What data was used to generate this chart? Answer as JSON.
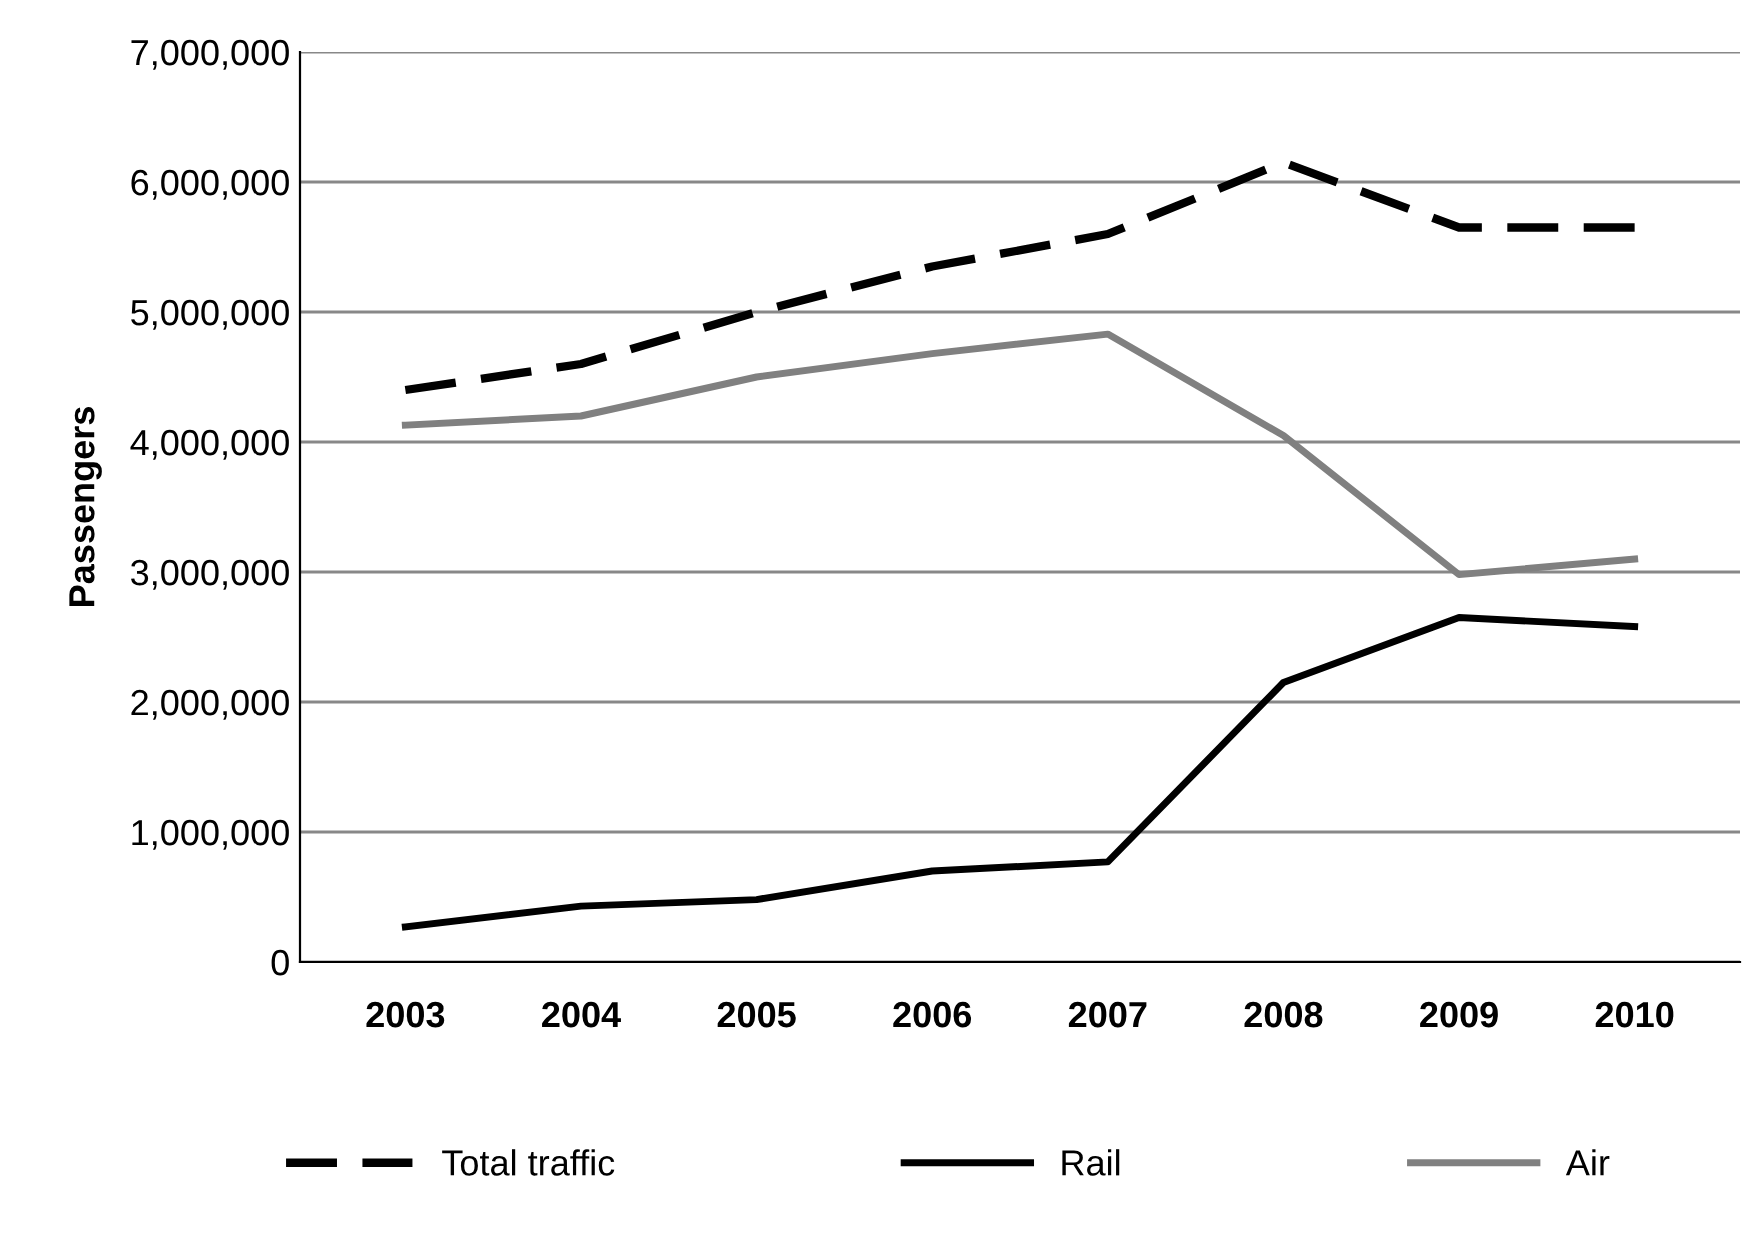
{
  "chart_data": {
    "type": "line",
    "ylabel": "Passengers",
    "categories": [
      "2003",
      "2004",
      "2005",
      "2006",
      "2007",
      "2008",
      "2009",
      "2010"
    ],
    "series": [
      {
        "name": "Total traffic",
        "color": "#000000",
        "line_style": "dashed",
        "values": [
          4400000,
          4600000,
          5000000,
          5350000,
          5600000,
          6150000,
          5650000,
          5650000
        ]
      },
      {
        "name": "Rail",
        "color": "#000000",
        "line_style": "solid",
        "values": [
          270000,
          430000,
          480000,
          700000,
          770000,
          2150000,
          2650000,
          2580000
        ]
      },
      {
        "name": "Air",
        "color": "#808080",
        "line_style": "solid",
        "values": [
          4130000,
          4200000,
          4500000,
          4680000,
          4830000,
          4050000,
          2980000,
          3100000
        ]
      }
    ],
    "ylim": [
      0,
      7000000
    ],
    "yticks": [
      {
        "value": 0,
        "label": "0"
      },
      {
        "value": 1000000,
        "label": "1,000,000"
      },
      {
        "value": 2000000,
        "label": "2,000,000"
      },
      {
        "value": 3000000,
        "label": "3,000,000"
      },
      {
        "value": 4000000,
        "label": "4,000,000"
      },
      {
        "value": 5000000,
        "label": "5,000,000"
      },
      {
        "value": 6000000,
        "label": "6,000,000"
      },
      {
        "value": 7000000,
        "label": "7,000,000"
      }
    ],
    "grid": "y",
    "legend": "bottom",
    "marker": "none"
  }
}
